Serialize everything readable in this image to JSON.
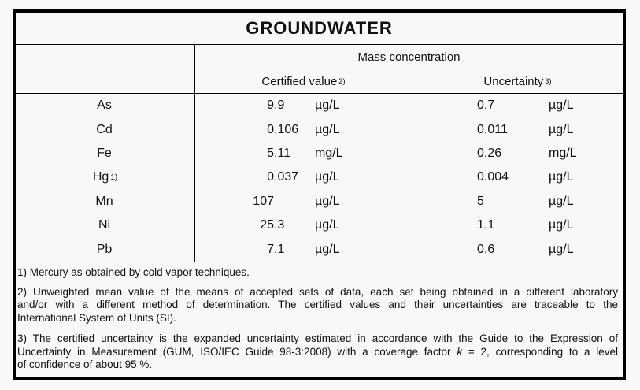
{
  "table": {
    "title": "GROUNDWATER",
    "header": {
      "group": "Mass concentration",
      "certified": {
        "label": "Certified value",
        "sup": "2)"
      },
      "uncertainty": {
        "label": "Uncertainty",
        "sup": "3)"
      }
    },
    "rows": [
      {
        "element": "As",
        "element_sup": "",
        "certified": "9.9",
        "certified_unit": "µg/L",
        "uncertainty": "0.7",
        "uncertainty_unit": "µg/L"
      },
      {
        "element": "Cd",
        "element_sup": "",
        "certified": "0.106",
        "certified_unit": "µg/L",
        "uncertainty": "0.011",
        "uncertainty_unit": "µg/L"
      },
      {
        "element": "Fe",
        "element_sup": "",
        "certified": "5.11",
        "certified_unit": "mg/L",
        "uncertainty": "0.26",
        "uncertainty_unit": "mg/L"
      },
      {
        "element": "Hg",
        "element_sup": "1)",
        "certified": "0.037",
        "certified_unit": "µg/L",
        "uncertainty": "0.004",
        "uncertainty_unit": "µg/L"
      },
      {
        "element": "Mn",
        "element_sup": "",
        "certified": "107",
        "certified_unit": "µg/L",
        "uncertainty": "5",
        "uncertainty_unit": "µg/L"
      },
      {
        "element": "Ni",
        "element_sup": "",
        "certified": "25.3",
        "certified_unit": "µg/L",
        "uncertainty": "1.1",
        "uncertainty_unit": "µg/L"
      },
      {
        "element": "Pb",
        "element_sup": "",
        "certified": "7.1",
        "certified_unit": "µg/L",
        "uncertainty": "0.6",
        "uncertainty_unit": "µg/L"
      }
    ],
    "footnotes": {
      "fn1": {
        "line1": "1) Mercury as obtained by cold vapor techniques."
      },
      "fn2": {
        "line1": "2) Unweighted mean value of the means of accepted sets of data, each set being obtained in a different laboratory",
        "line2": "and/or with a different method of determination. The certified values and their uncertainties are traceable to the",
        "line3": "International System of Units (SI)."
      },
      "fn3": {
        "line1": "3) The certified uncertainty is the expanded uncertainty estimated in accordance with the Guide to the Expression of",
        "line2_before_k": "Uncertainty in Measurement (GUM, ISO/IEC Guide 98-3:2008) with a coverage factor ",
        "line2_k": "k",
        "line2_after_k": " = 2, corresponding to a level",
        "line3": "of confidence of about 95 %."
      }
    }
  }
}
